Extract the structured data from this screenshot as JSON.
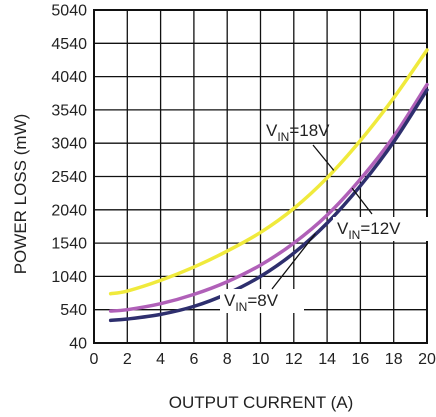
{
  "chart_data": {
    "type": "line",
    "xlabel": "OUTPUT CURRENT (A)",
    "ylabel": "POWER LOSS (mW)",
    "xlim": [
      0,
      20
    ],
    "ylim": [
      40,
      5040
    ],
    "x_ticks": [
      "0",
      "2",
      "4",
      "6",
      "8",
      "10",
      "12",
      "14",
      "16",
      "18",
      "20"
    ],
    "y_ticks": [
      "40",
      "540",
      "1040",
      "1540",
      "2040",
      "2540",
      "3040",
      "3540",
      "4040",
      "4540",
      "5040"
    ],
    "grid": true,
    "series": [
      {
        "name": "VIN=18V",
        "label_main": "V",
        "label_sub": "IN",
        "label_rest": "=18V",
        "color": "#f0ea3c",
        "x": [
          1,
          2,
          4,
          6,
          8,
          10,
          12,
          14,
          16,
          18,
          20
        ],
        "y": [
          780,
          820,
          980,
          1180,
          1420,
          1700,
          2060,
          2520,
          3080,
          3720,
          4440
        ]
      },
      {
        "name": "VIN=12V",
        "label_main": "V",
        "label_sub": "IN",
        "label_rest": "=12V",
        "color": "#b060b8",
        "x": [
          1,
          2,
          4,
          6,
          8,
          10,
          12,
          14,
          16,
          18,
          20
        ],
        "y": [
          520,
          540,
          630,
          770,
          960,
          1210,
          1540,
          1960,
          2500,
          3140,
          3920
        ]
      },
      {
        "name": "VIN=8V",
        "label_main": "V",
        "label_sub": "IN",
        "label_rest": "=8V",
        "color": "#2e2f6e",
        "x": [
          1,
          2,
          4,
          6,
          8,
          10,
          12,
          14,
          16,
          18,
          20
        ],
        "y": [
          380,
          400,
          470,
          590,
          780,
          1040,
          1390,
          1840,
          2400,
          3060,
          3840
        ]
      }
    ]
  }
}
